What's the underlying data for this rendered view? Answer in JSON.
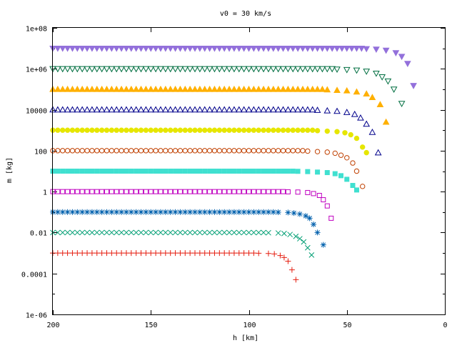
{
  "chart_data": {
    "type": "scatter",
    "title": "v0 = 30 km/s",
    "xlabel": "h [km]",
    "ylabel": "m [kg]",
    "xlim": [
      200,
      0
    ],
    "ylim": [
      1e-06,
      100000000.0
    ],
    "y_scale": "log",
    "grid": false,
    "legend": "none",
    "x_ticks": [
      {
        "value": 200,
        "label": "200"
      },
      {
        "value": 150,
        "label": "150"
      },
      {
        "value": 100,
        "label": "100"
      },
      {
        "value": 50,
        "label": "50"
      },
      {
        "value": 0,
        "label": "0"
      }
    ],
    "y_ticks": [
      {
        "value": 100000000.0,
        "label": "1e+08"
      },
      {
        "value": 1000000.0,
        "label": "1e+06"
      },
      {
        "value": 10000.0,
        "label": "10000"
      },
      {
        "value": 100,
        "label": "100"
      },
      {
        "value": 1,
        "label": "1"
      },
      {
        "value": 0.01,
        "label": "0.01"
      },
      {
        "value": 0.0001,
        "label": "0.0001"
      },
      {
        "value": 1e-06,
        "label": "1e-06"
      }
    ],
    "series": [
      {
        "marker": "tri-down-filled",
        "color": "#9370DB",
        "m0": 10000000.0,
        "tail": [
          [
            40,
            9500000.0
          ],
          [
            35,
            9000000.0
          ],
          [
            30,
            8000000.0
          ],
          [
            25,
            6000000.0
          ],
          [
            22,
            4000000.0
          ],
          [
            19,
            1800000.0
          ],
          [
            16,
            150000.0
          ]
        ]
      },
      {
        "marker": "tri-down-open",
        "color": "#006E40",
        "m0": 1000000.0,
        "tail": [
          [
            55,
            950000.0
          ],
          [
            50,
            900000.0
          ],
          [
            45,
            850000.0
          ],
          [
            40,
            750000.0
          ],
          [
            35,
            600000.0
          ],
          [
            32,
            400000.0
          ],
          [
            29,
            250000.0
          ],
          [
            26,
            100000.0
          ],
          [
            22,
            20000.0
          ]
        ]
      },
      {
        "marker": "tri-up-filled",
        "color": "#FFB000",
        "m0": 100000.0,
        "tail": [
          [
            60,
            95000.0
          ],
          [
            55,
            90000.0
          ],
          [
            50,
            85000.0
          ],
          [
            45,
            75000.0
          ],
          [
            40,
            60000.0
          ],
          [
            37,
            40000.0
          ],
          [
            33,
            18000.0
          ],
          [
            30,
            2500.0
          ]
        ]
      },
      {
        "marker": "tri-up-open",
        "color": "#00008B",
        "m0": 10000.0,
        "tail": [
          [
            65,
            9500.0
          ],
          [
            60,
            9000.0
          ],
          [
            55,
            8500.0
          ],
          [
            50,
            7500.0
          ],
          [
            46,
            6000.0
          ],
          [
            43,
            4000.0
          ],
          [
            40,
            2000.0
          ],
          [
            37,
            800.0
          ],
          [
            34,
            80
          ]
        ]
      },
      {
        "marker": "circle-filled",
        "color": "#E6E600",
        "m0": 1000.0,
        "tail": [
          [
            65,
            950
          ],
          [
            60,
            900
          ],
          [
            55,
            850
          ],
          [
            51,
            750
          ],
          [
            48,
            600
          ],
          [
            45,
            400
          ],
          [
            42,
            150
          ],
          [
            40,
            80
          ]
        ]
      },
      {
        "marker": "circle-open",
        "color": "#C04000",
        "m0": 100,
        "tail": [
          [
            70,
            95
          ],
          [
            65,
            90
          ],
          [
            60,
            85
          ],
          [
            56,
            75
          ],
          [
            53,
            60
          ],
          [
            50,
            45
          ],
          [
            47,
            25
          ],
          [
            45,
            10
          ],
          [
            42,
            1.8
          ]
        ]
      },
      {
        "marker": "square-filled",
        "color": "#40E0D0",
        "m0": 10,
        "tail": [
          [
            75,
            9.8
          ],
          [
            70,
            9.5
          ],
          [
            65,
            9.0
          ],
          [
            60,
            8.5
          ],
          [
            56,
            7.5
          ],
          [
            53,
            6.0
          ],
          [
            50,
            4.0
          ],
          [
            47,
            2.0
          ],
          [
            45,
            1.2
          ]
        ]
      },
      {
        "marker": "square-open",
        "color": "#C000C0",
        "m0": 1,
        "tail": [
          [
            80,
            0.98
          ],
          [
            75,
            0.95
          ],
          [
            70,
            0.9
          ],
          [
            67,
            0.8
          ],
          [
            64,
            0.65
          ],
          [
            62,
            0.4
          ],
          [
            60,
            0.2
          ],
          [
            58,
            0.05
          ]
        ]
      },
      {
        "marker": "asterisk",
        "color": "#0060AD",
        "m0": 0.1,
        "tail": [
          [
            85,
            0.098
          ],
          [
            80,
            0.095
          ],
          [
            77,
            0.09
          ],
          [
            74,
            0.08
          ],
          [
            71,
            0.065
          ],
          [
            69,
            0.05
          ],
          [
            67,
            0.025
          ],
          [
            65,
            0.01
          ],
          [
            62,
            0.0025
          ]
        ]
      },
      {
        "marker": "cross-x",
        "color": "#009E73",
        "m0": 0.01,
        "tail": [
          [
            90,
            0.0098
          ],
          [
            85,
            0.0095
          ],
          [
            82,
            0.009
          ],
          [
            79,
            0.008
          ],
          [
            76,
            0.0065
          ],
          [
            74,
            0.005
          ],
          [
            72,
            0.0035
          ],
          [
            70,
            0.0018
          ],
          [
            68,
            0.0008
          ]
        ]
      },
      {
        "marker": "plus",
        "color": "#E51E10",
        "m0": 0.001,
        "tail": [
          [
            95,
            0.00098
          ],
          [
            90,
            0.00095
          ],
          [
            87,
            0.0009
          ],
          [
            84,
            0.00075
          ],
          [
            82,
            0.0006
          ],
          [
            80,
            0.0004
          ],
          [
            78,
            0.00015
          ],
          [
            76,
            5e-05
          ]
        ]
      }
    ]
  }
}
